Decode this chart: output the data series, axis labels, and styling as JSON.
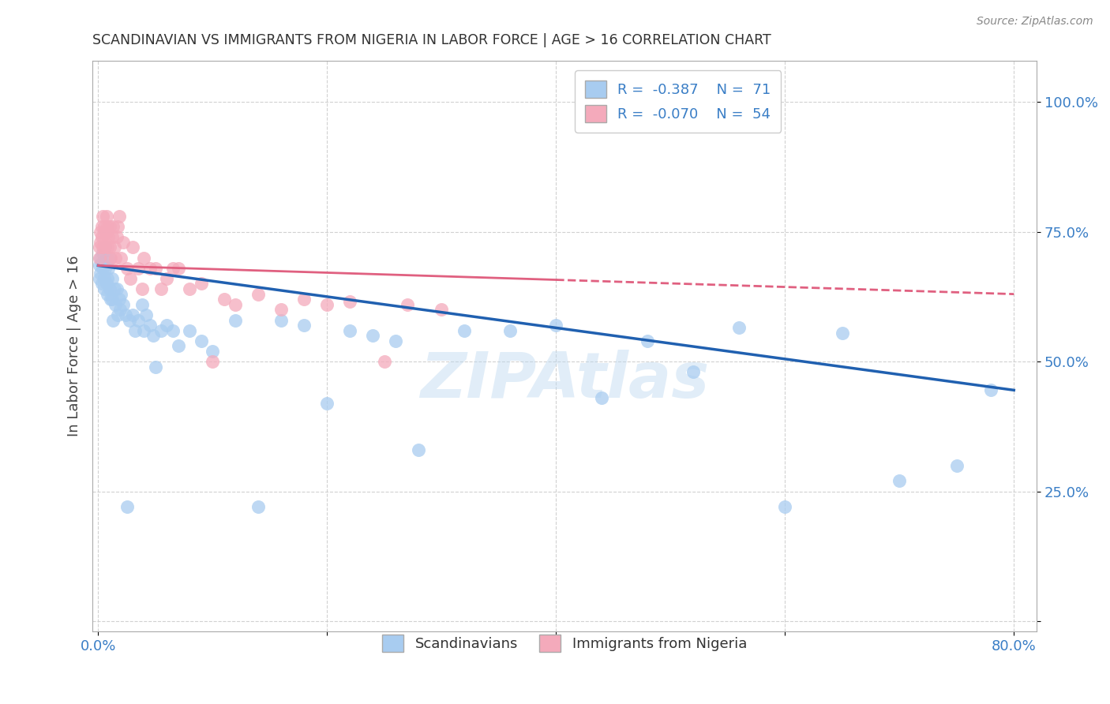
{
  "title": "SCANDINAVIAN VS IMMIGRANTS FROM NIGERIA IN LABOR FORCE | AGE > 16 CORRELATION CHART",
  "source": "Source: ZipAtlas.com",
  "ylabel_label": "In Labor Force | Age > 16",
  "yticks": [
    0.0,
    0.25,
    0.5,
    0.75,
    1.0
  ],
  "ytick_labels": [
    "",
    "25.0%",
    "50.0%",
    "75.0%",
    "100.0%"
  ],
  "xlim": [
    -0.005,
    0.82
  ],
  "ylim": [
    -0.02,
    1.08
  ],
  "blue_color": "#A8CCF0",
  "pink_color": "#F4AABB",
  "blue_line_color": "#2060B0",
  "pink_line_color": "#E06080",
  "watermark": "ZIPAtlas",
  "background_color": "#FFFFFF",
  "scandinavians_label": "Scandinavians",
  "nigeria_label": "Immigrants from Nigeria",
  "blue_line_x0": 0.0,
  "blue_line_y0": 0.685,
  "blue_line_x1": 0.8,
  "blue_line_y1": 0.445,
  "pink_line_x0": 0.0,
  "pink_line_y0": 0.685,
  "pink_line_x1": 0.8,
  "pink_line_y1": 0.63,
  "pink_line_solid_end": 0.4,
  "blue_scatter_x": [
    0.001,
    0.001,
    0.002,
    0.002,
    0.003,
    0.003,
    0.004,
    0.004,
    0.005,
    0.005,
    0.006,
    0.006,
    0.007,
    0.007,
    0.008,
    0.008,
    0.009,
    0.01,
    0.01,
    0.011,
    0.012,
    0.012,
    0.013,
    0.014,
    0.015,
    0.016,
    0.017,
    0.018,
    0.019,
    0.02,
    0.022,
    0.024,
    0.025,
    0.027,
    0.03,
    0.032,
    0.035,
    0.038,
    0.04,
    0.042,
    0.045,
    0.048,
    0.05,
    0.055,
    0.06,
    0.065,
    0.07,
    0.08,
    0.09,
    0.1,
    0.12,
    0.14,
    0.16,
    0.18,
    0.2,
    0.22,
    0.24,
    0.26,
    0.28,
    0.32,
    0.36,
    0.4,
    0.44,
    0.48,
    0.52,
    0.56,
    0.6,
    0.65,
    0.7,
    0.75,
    0.78
  ],
  "blue_scatter_y": [
    0.685,
    0.66,
    0.7,
    0.67,
    0.69,
    0.65,
    0.68,
    0.71,
    0.66,
    0.64,
    0.72,
    0.68,
    0.65,
    0.7,
    0.66,
    0.63,
    0.68,
    0.64,
    0.7,
    0.62,
    0.66,
    0.62,
    0.58,
    0.64,
    0.61,
    0.64,
    0.59,
    0.62,
    0.6,
    0.63,
    0.61,
    0.59,
    0.22,
    0.58,
    0.59,
    0.56,
    0.58,
    0.61,
    0.56,
    0.59,
    0.57,
    0.55,
    0.49,
    0.56,
    0.57,
    0.56,
    0.53,
    0.56,
    0.54,
    0.52,
    0.58,
    0.22,
    0.58,
    0.57,
    0.42,
    0.56,
    0.55,
    0.54,
    0.33,
    0.56,
    0.56,
    0.57,
    0.43,
    0.54,
    0.48,
    0.565,
    0.22,
    0.555,
    0.27,
    0.3,
    0.445
  ],
  "pink_scatter_x": [
    0.001,
    0.001,
    0.002,
    0.002,
    0.003,
    0.003,
    0.004,
    0.004,
    0.005,
    0.005,
    0.006,
    0.006,
    0.007,
    0.007,
    0.008,
    0.008,
    0.009,
    0.01,
    0.01,
    0.011,
    0.012,
    0.013,
    0.014,
    0.015,
    0.016,
    0.017,
    0.018,
    0.02,
    0.022,
    0.025,
    0.028,
    0.03,
    0.035,
    0.038,
    0.04,
    0.045,
    0.05,
    0.055,
    0.06,
    0.065,
    0.07,
    0.08,
    0.09,
    0.1,
    0.11,
    0.12,
    0.14,
    0.16,
    0.18,
    0.2,
    0.22,
    0.25,
    0.27,
    0.3
  ],
  "pink_scatter_y": [
    0.7,
    0.72,
    0.73,
    0.75,
    0.74,
    0.76,
    0.72,
    0.78,
    0.76,
    0.72,
    0.75,
    0.73,
    0.78,
    0.75,
    0.72,
    0.76,
    0.74,
    0.76,
    0.72,
    0.7,
    0.74,
    0.76,
    0.72,
    0.7,
    0.74,
    0.76,
    0.78,
    0.7,
    0.73,
    0.68,
    0.66,
    0.72,
    0.68,
    0.64,
    0.7,
    0.68,
    0.68,
    0.64,
    0.66,
    0.68,
    0.68,
    0.64,
    0.65,
    0.5,
    0.62,
    0.61,
    0.63,
    0.6,
    0.62,
    0.61,
    0.615,
    0.5,
    0.61,
    0.6
  ]
}
